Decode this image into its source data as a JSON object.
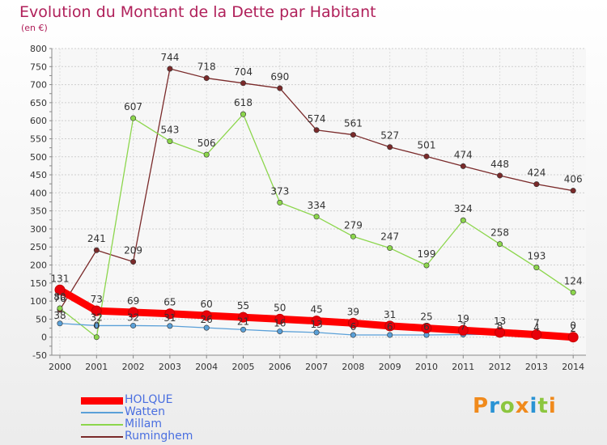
{
  "title": "Evolution du Montant de la Dette par Habitant",
  "unit_label": "(en €)",
  "logo_text": "Proxiti",
  "chart_data": {
    "type": "line",
    "x": [
      "2000",
      "2001",
      "2002",
      "2003",
      "2004",
      "2005",
      "2006",
      "2007",
      "2008",
      "2009",
      "2010",
      "2011",
      "2012",
      "2013",
      "2014"
    ],
    "ylim": [
      -50,
      800
    ],
    "yticks": [
      -50,
      0,
      50,
      100,
      150,
      200,
      250,
      300,
      350,
      400,
      450,
      500,
      550,
      600,
      650,
      700,
      750,
      800
    ],
    "grid": true,
    "legend_position": "bottom-left",
    "series": [
      {
        "name": "HOLQUE",
        "color": "#ff0000",
        "width": 9,
        "values": [
          131,
          73,
          69,
          65,
          60,
          55,
          50,
          45,
          39,
          31,
          25,
          19,
          13,
          7,
          0
        ]
      },
      {
        "name": "Watten",
        "color": "#5aa0d8",
        "width": 1.3,
        "values": [
          38,
          32,
          32,
          31,
          26,
          21,
          16,
          13,
          6,
          6,
          6,
          7,
          8,
          4,
          2
        ]
      },
      {
        "name": "Millam",
        "color": "#8cd64c",
        "width": 1.3,
        "values": [
          80,
          0,
          607,
          543,
          506,
          618,
          373,
          334,
          279,
          247,
          199,
          324,
          258,
          193,
          124
        ]
      },
      {
        "name": "Ruminghem",
        "color": "#7a2a2a",
        "width": 1.3,
        "values": [
          76,
          241,
          209,
          744,
          718,
          704,
          690,
          574,
          561,
          527,
          501,
          474,
          448,
          424,
          406
        ]
      }
    ],
    "point_labels": [
      {
        "series": 0,
        "labels": [
          "131",
          "73",
          "69",
          "65",
          "60",
          "55",
          "50",
          "45",
          "39",
          "31",
          "25",
          "19",
          "13",
          "7",
          "0"
        ]
      },
      {
        "series": 1,
        "labels": [
          "38",
          "32",
          "32",
          "31",
          "26",
          "21",
          "16",
          "13",
          "6",
          "6",
          "6",
          "7",
          "8",
          "4",
          "2"
        ]
      },
      {
        "series": 2,
        "labels": [
          "80",
          "0",
          "607",
          "543",
          "506",
          "618",
          "373",
          "334",
          "279",
          "247",
          "199",
          "324",
          "258",
          "193",
          "124"
        ]
      },
      {
        "series": 3,
        "labels": [
          "76",
          "241",
          "209",
          "744",
          "718",
          "704",
          "690",
          "574",
          "561",
          "527",
          "501",
          "474",
          "448",
          "424",
          "406"
        ]
      }
    ]
  }
}
